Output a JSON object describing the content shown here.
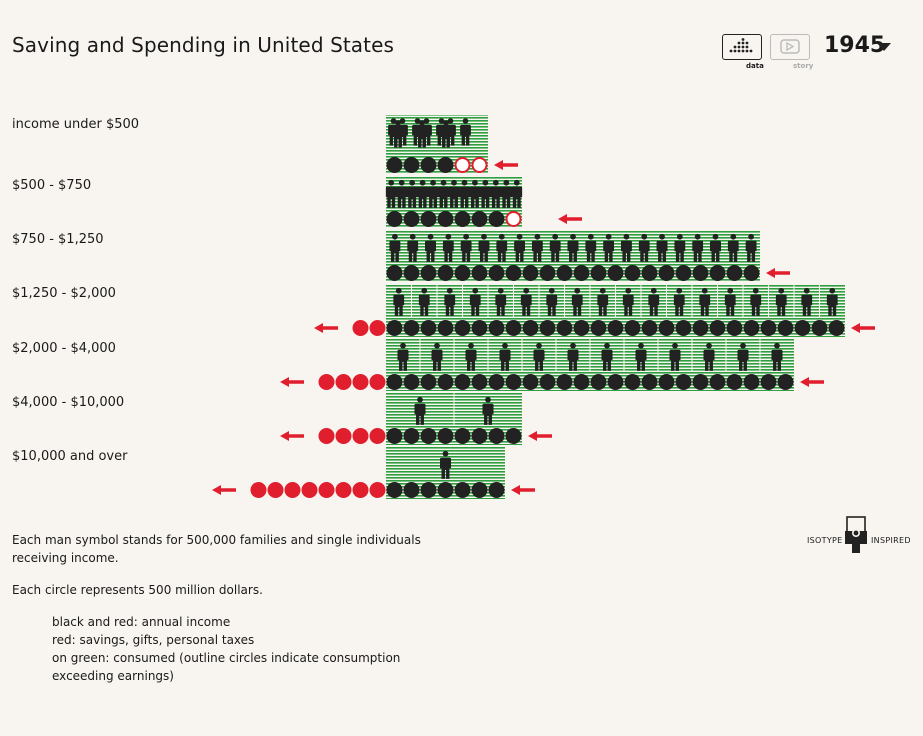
{
  "title": "Saving and Spending in United States",
  "controls": {
    "data_label": "data",
    "story_label": "story",
    "year": "1945"
  },
  "chart_data": {
    "type": "isotype",
    "title": "Saving and Spending in United States",
    "year": "1945",
    "unit_person": "500,000 families and single individuals receiving income",
    "unit_circle": "500 million dollars",
    "rows": [
      {
        "label": "income under $500",
        "people": 10,
        "consumed_black": 4,
        "consumed_outline": 2,
        "saved": 0,
        "arrow_in": true,
        "arrow_out": false
      },
      {
        "label": "$500 - $750",
        "people": 13,
        "consumed_black": 7,
        "consumed_outline": 1,
        "saved": 0,
        "arrow_in": true,
        "arrow_out": false
      },
      {
        "label": "$750 - $1,250",
        "people": 21,
        "consumed_black": 22,
        "consumed_outline": 0,
        "saved": 0,
        "arrow_in": true,
        "arrow_out": false
      },
      {
        "label": "$1,250 - $2,000",
        "people": 18,
        "consumed_black": 27,
        "consumed_outline": 0,
        "saved": 2,
        "arrow_in": true,
        "arrow_out": true
      },
      {
        "label": "$2,000 - $4,000",
        "people": 12,
        "consumed_black": 24,
        "consumed_outline": 0,
        "saved": 4,
        "arrow_in": true,
        "arrow_out": true
      },
      {
        "label": "$4,000 - $10,000",
        "people": 2,
        "consumed_black": 8,
        "consumed_outline": 0,
        "saved": 4,
        "arrow_in": true,
        "arrow_out": true
      },
      {
        "label": "$10,000 and over",
        "people": 1,
        "consumed_black": 7,
        "consumed_outline": 0,
        "saved": 8,
        "arrow_in": true,
        "arrow_out": true
      }
    ]
  },
  "notes": {
    "person_unit": "Each man symbol stands for 500,000 families and single individuals receiving income.",
    "circle_unit": "Each circle represents 500 million dollars.",
    "legend": [
      "black and red: annual income",
      "red: savings, gifts, personal taxes",
      "on green: consumed (outline circles indicate consumption exceeding earnings)"
    ]
  },
  "logo": {
    "left_text": "ISOTYPE",
    "right_text": "INSPIRED"
  },
  "colors": {
    "background": "#f8f5f0",
    "green": "#2e9e3e",
    "black": "#222222",
    "red": "#e01e2e"
  }
}
